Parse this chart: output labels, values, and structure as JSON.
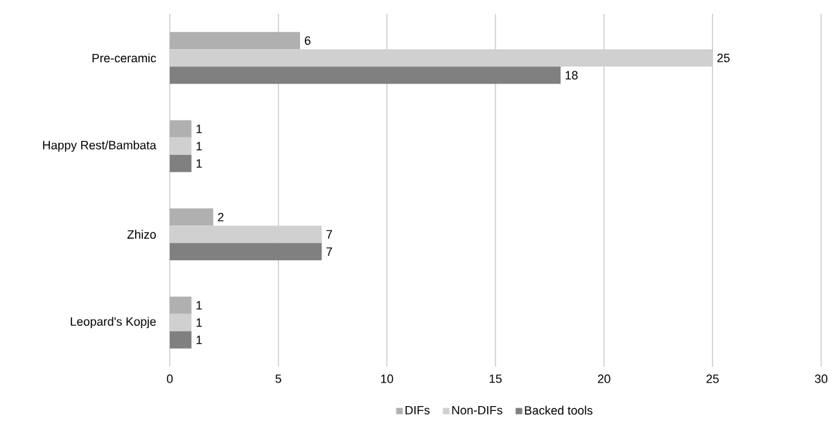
{
  "chart_data": {
    "type": "bar",
    "orientation": "horizontal",
    "categories": [
      "Pre-ceramic",
      "Happy Rest/Bambata",
      "Zhizo",
      "Leopard's Kopje"
    ],
    "series": [
      {
        "name": "DIFs",
        "color": "#b0b0b0",
        "values": [
          6,
          1,
          2,
          1
        ]
      },
      {
        "name": "Non-DIFs",
        "color": "#d0d0d0",
        "values": [
          25,
          1,
          7,
          1
        ]
      },
      {
        "name": "Backed tools",
        "color": "#808080",
        "values": [
          18,
          1,
          7,
          1
        ]
      }
    ],
    "xlim": [
      0,
      30
    ],
    "xticks": [
      0,
      5,
      10,
      15,
      20,
      25,
      30
    ],
    "grid": "x",
    "legend": "bottom",
    "data_labels": true
  }
}
